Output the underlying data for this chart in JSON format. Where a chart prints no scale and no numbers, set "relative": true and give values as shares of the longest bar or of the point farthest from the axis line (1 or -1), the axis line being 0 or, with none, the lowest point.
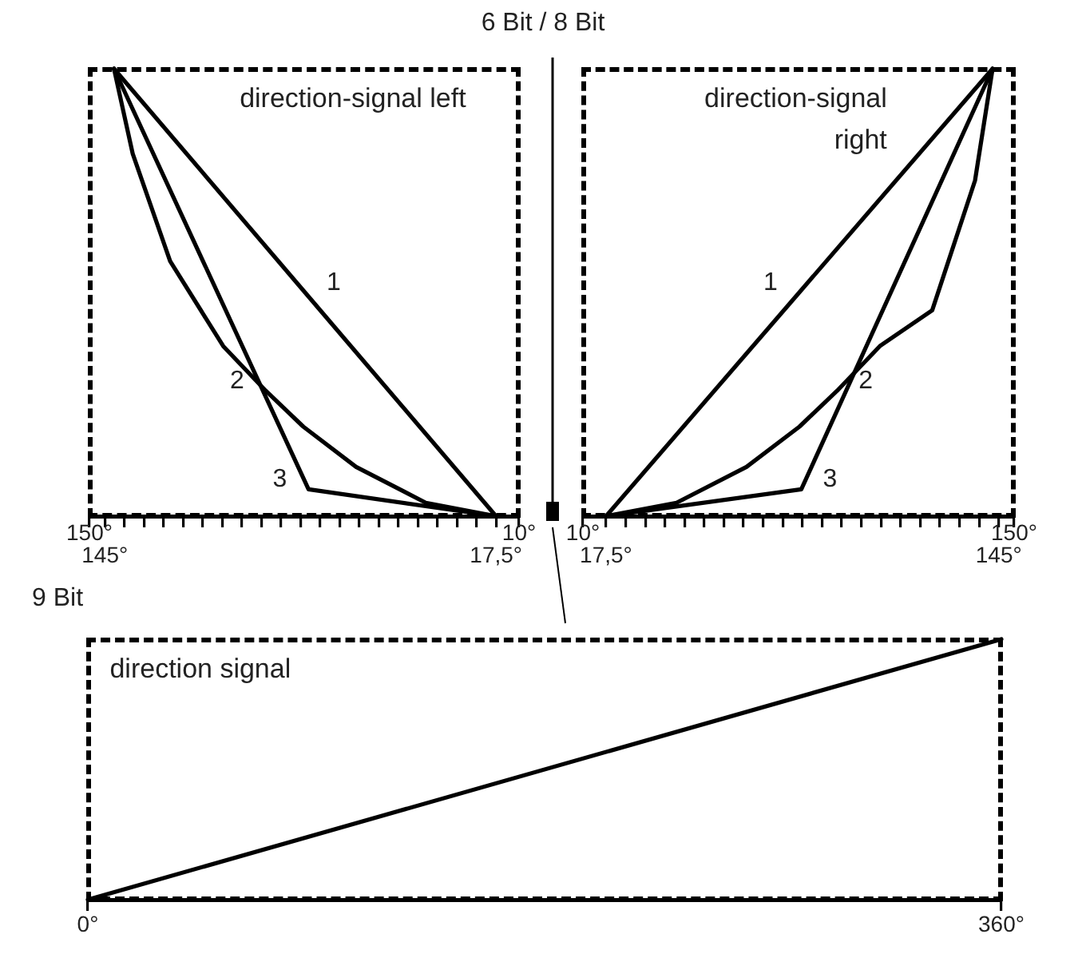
{
  "chart_data": [
    {
      "type": "line",
      "title": "6 Bit / 8 Bit",
      "relative": true,
      "legend": false,
      "grid": false,
      "marker": "none",
      "line_style": "solid",
      "annotations": [
        "direction-signal left",
        "150°",
        "10°"
      ],
      "xlim": [
        150,
        10
      ],
      "xticks": [
        {
          "value": 150,
          "label": null
        },
        {
          "value": 145,
          "label": "145°"
        },
        {
          "value": 138.625,
          "label": null
        },
        {
          "value": 132.25,
          "label": null
        },
        {
          "value": 125.875,
          "label": null
        },
        {
          "value": 119.5,
          "label": null
        },
        {
          "value": 113.125,
          "label": null
        },
        {
          "value": 106.75,
          "label": null
        },
        {
          "value": 100.375,
          "label": null
        },
        {
          "value": 94,
          "label": null
        },
        {
          "value": 87.625,
          "label": null
        },
        {
          "value": 81.25,
          "label": null
        },
        {
          "value": 74.875,
          "label": null
        },
        {
          "value": 68.5,
          "label": null
        },
        {
          "value": 62.125,
          "label": null
        },
        {
          "value": 55.75,
          "label": null
        },
        {
          "value": 49.375,
          "label": null
        },
        {
          "value": 43,
          "label": null
        },
        {
          "value": 36.625,
          "label": null
        },
        {
          "value": 30.25,
          "label": null
        },
        {
          "value": 23.875,
          "label": null
        },
        {
          "value": 17.5,
          "label": "17,5°"
        },
        {
          "value": 10,
          "label": null
        }
      ],
      "series": [
        {
          "name": "1",
          "color": "#000000",
          "x": [
            142,
            79.75,
            17.5
          ],
          "values": [
            1,
            0.5,
            0
          ]
        },
        {
          "name": "2",
          "color": "#000000",
          "x": [
            142,
            135.9,
            123.7,
            106.4,
            92.5,
            80.3,
            63.1,
            40.4,
            17.5
          ],
          "values": [
            1,
            0.81,
            0.57,
            0.38,
            0.28,
            0.2,
            0.11,
            0.03,
            0
          ]
        },
        {
          "name": "3",
          "color": "#000000",
          "x": [
            142,
            78.6,
            17.5
          ],
          "values": [
            1,
            0.06,
            0
          ]
        }
      ]
    },
    {
      "type": "line",
      "relative": true,
      "legend": false,
      "grid": false,
      "marker": "none",
      "line_style": "solid",
      "annotations": [
        "direction-signal right",
        "10°",
        "150°"
      ],
      "xlim": [
        10,
        150
      ],
      "xticks": [
        {
          "value": 10,
          "label": null
        },
        {
          "value": 17.5,
          "label": "17,5°"
        },
        {
          "value": 23.875,
          "label": null
        },
        {
          "value": 30.25,
          "label": null
        },
        {
          "value": 36.625,
          "label": null
        },
        {
          "value": 43,
          "label": null
        },
        {
          "value": 49.375,
          "label": null
        },
        {
          "value": 55.75,
          "label": null
        },
        {
          "value": 62.125,
          "label": null
        },
        {
          "value": 68.5,
          "label": null
        },
        {
          "value": 74.875,
          "label": null
        },
        {
          "value": 81.25,
          "label": null
        },
        {
          "value": 87.625,
          "label": null
        },
        {
          "value": 94,
          "label": null
        },
        {
          "value": 100.375,
          "label": null
        },
        {
          "value": 106.75,
          "label": null
        },
        {
          "value": 113.125,
          "label": null
        },
        {
          "value": 119.5,
          "label": null
        },
        {
          "value": 125.875,
          "label": null
        },
        {
          "value": 132.25,
          "label": null
        },
        {
          "value": 138.625,
          "label": null
        },
        {
          "value": 145,
          "label": "145°"
        },
        {
          "value": 150,
          "label": null
        }
      ],
      "series": [
        {
          "name": "1",
          "color": "#000000",
          "x": [
            17.5,
            80.25,
            143
          ],
          "values": [
            0,
            0.5,
            1
          ]
        },
        {
          "name": "2",
          "color": "#000000",
          "x": [
            17.5,
            40.4,
            63.1,
            80.3,
            92.5,
            106.4,
            123.4,
            137.3,
            143
          ],
          "values": [
            0,
            0.03,
            0.11,
            0.2,
            0.28,
            0.38,
            0.46,
            0.75,
            1
          ]
        },
        {
          "name": "3",
          "color": "#000000",
          "x": [
            17.5,
            80.9,
            143
          ],
          "values": [
            0,
            0.06,
            1
          ]
        }
      ]
    },
    {
      "type": "line",
      "title": "9 Bit",
      "relative": true,
      "legend": false,
      "grid": false,
      "marker": "none",
      "line_style": "solid",
      "annotations": [
        "direction signal"
      ],
      "xlim": [
        0,
        360
      ],
      "xticks": [
        {
          "value": 0,
          "label": "0°"
        },
        {
          "value": 360,
          "label": "360°"
        }
      ],
      "series": [
        {
          "color": "#000000",
          "x": [
            0,
            360
          ],
          "values": [
            0,
            1
          ]
        }
      ]
    }
  ]
}
